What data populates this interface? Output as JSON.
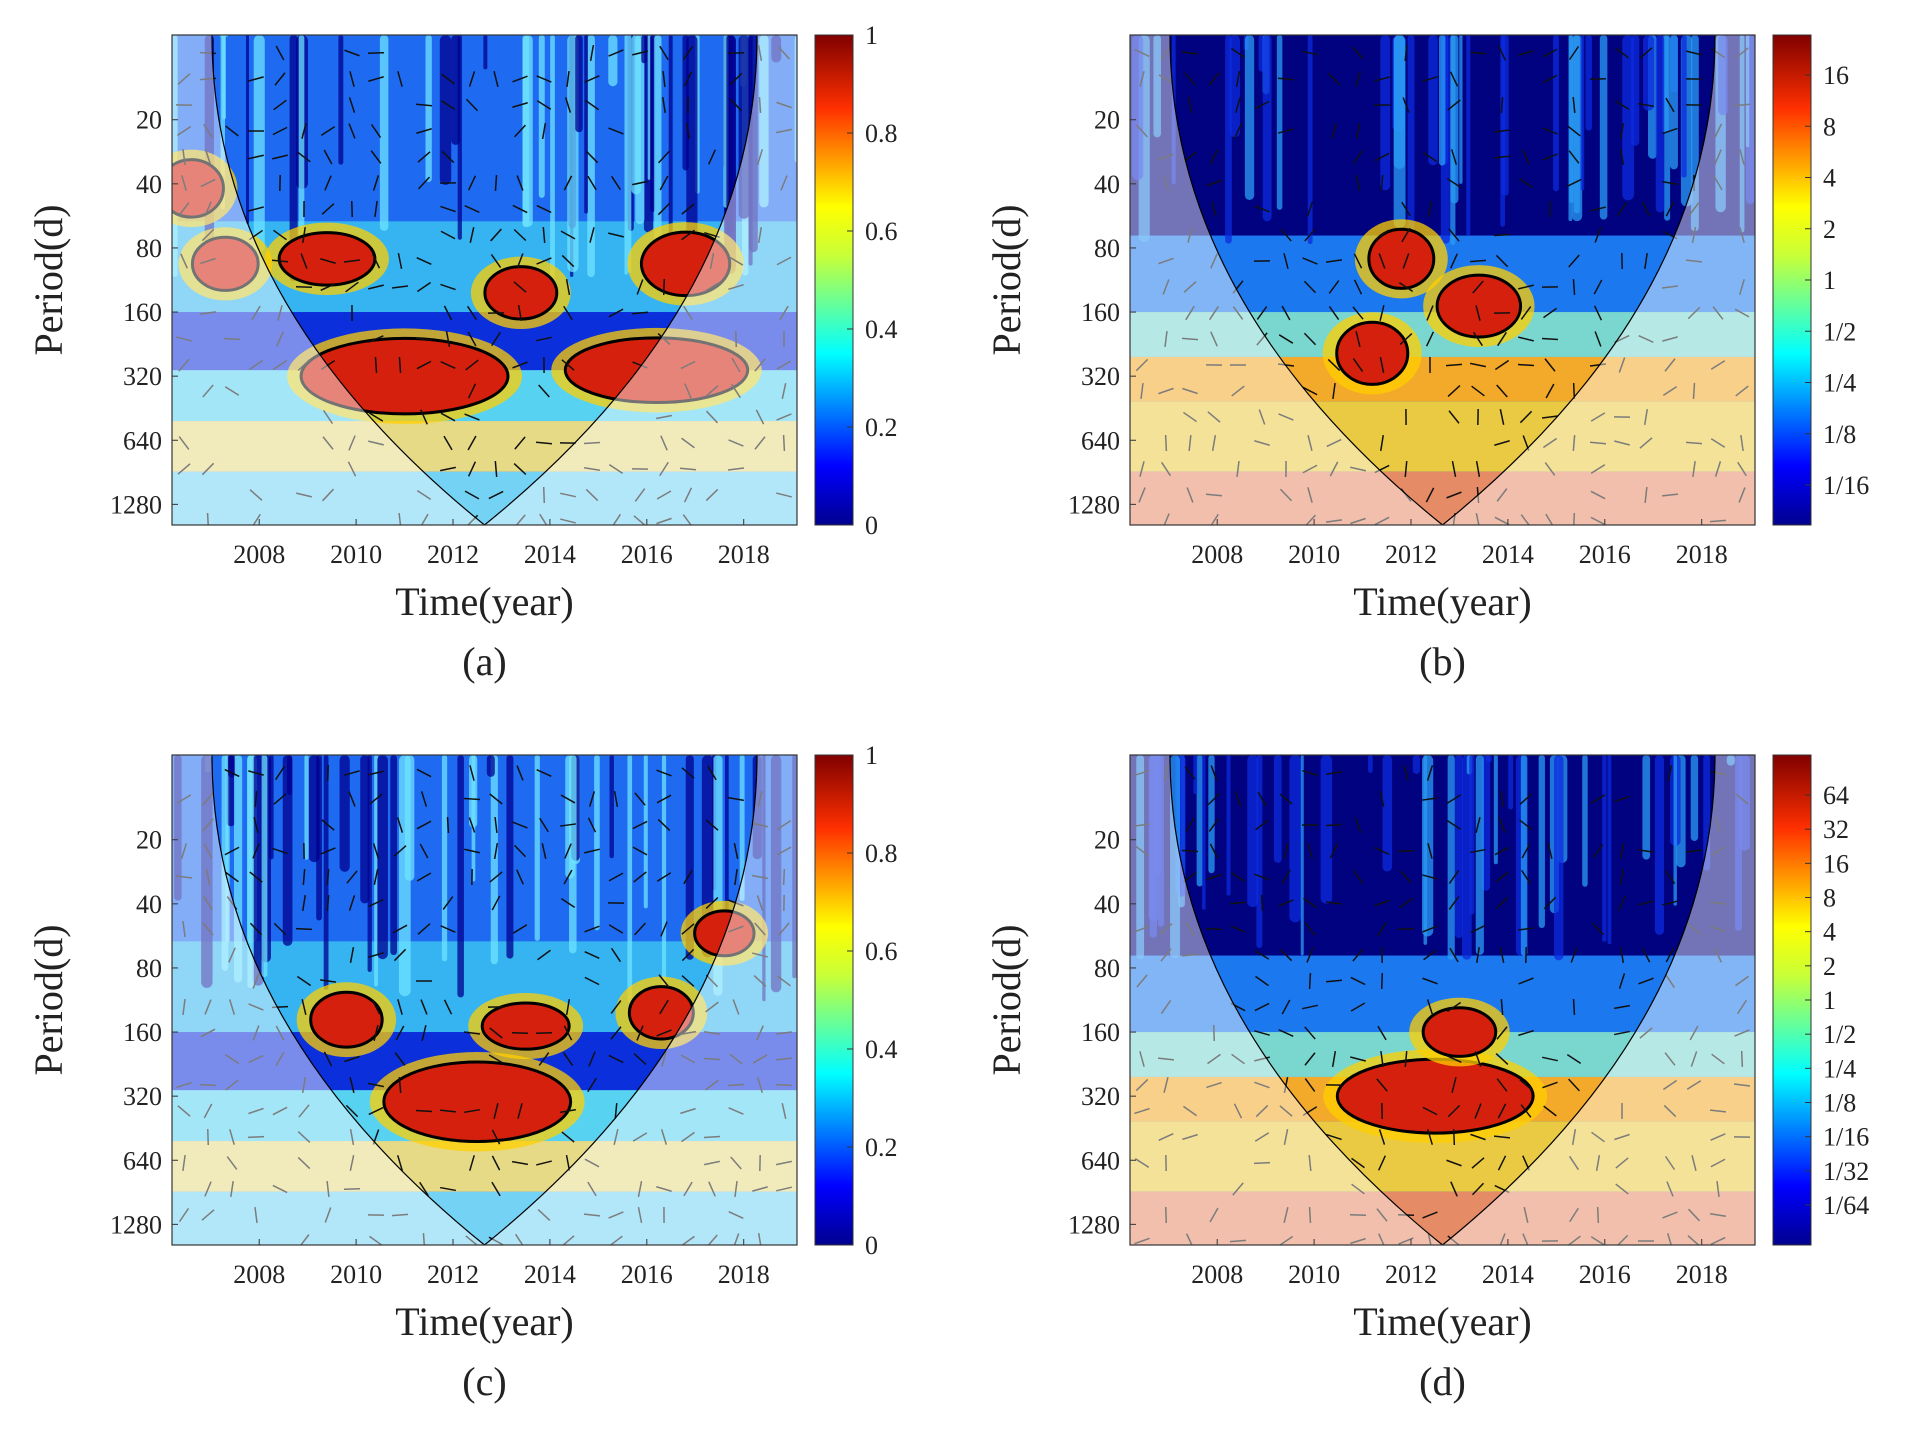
{
  "figure": {
    "panels": [
      {
        "id": "a",
        "caption": "(a)",
        "colorbar_type": "linear"
      },
      {
        "id": "b",
        "caption": "(b)",
        "colorbar_type": "power"
      },
      {
        "id": "c",
        "caption": "(c)",
        "colorbar_type": "linear"
      },
      {
        "id": "d",
        "caption": "(d)",
        "colorbar_type": "power"
      }
    ]
  },
  "chart_data": [
    {
      "type": "heatmap",
      "panel": "a",
      "caption": "(a)",
      "xlabel": "Time(year)",
      "ylabel": "Period(d)",
      "x_ticks": [
        "2008",
        "2010",
        "2012",
        "2014",
        "2016",
        "2018"
      ],
      "y_ticks": [
        "20",
        "40",
        "80",
        "160",
        "320",
        "640",
        "1280"
      ],
      "y_scale": "log2",
      "xlim": [
        2006.2,
        2019.1
      ],
      "ylim": [
        8,
        1600
      ],
      "colorbar": {
        "ticks": [
          "0",
          "0.2",
          "0.4",
          "0.6",
          "0.8",
          "1"
        ],
        "range": [
          0,
          1
        ]
      },
      "significant_regions": [
        {
          "x_center": 2006.6,
          "period_center": 42,
          "label": "high"
        },
        {
          "x_center": 2007.3,
          "period_center": 95,
          "label": "high"
        },
        {
          "x_center": 2009.4,
          "period_center": 90,
          "label": "high"
        },
        {
          "x_center": 2011.0,
          "period_center": 320,
          "label": "high"
        },
        {
          "x_center": 2013.4,
          "period_center": 130,
          "label": "high"
        },
        {
          "x_center": 2016.2,
          "period_center": 300,
          "label": "high"
        },
        {
          "x_center": 2016.8,
          "period_center": 95,
          "label": "high"
        }
      ]
    },
    {
      "type": "heatmap",
      "panel": "b",
      "caption": "(b)",
      "xlabel": "Time(year)",
      "ylabel": "Period(d)",
      "x_ticks": [
        "2008",
        "2010",
        "2012",
        "2014",
        "2016",
        "2018"
      ],
      "y_ticks": [
        "20",
        "40",
        "80",
        "160",
        "320",
        "640",
        "1280"
      ],
      "y_scale": "log2",
      "xlim": [
        2006.2,
        2019.1
      ],
      "ylim": [
        8,
        1600
      ],
      "colorbar": {
        "ticks": [
          "16",
          "8",
          "4",
          "2",
          "1",
          "1/2",
          "1/4",
          "1/8",
          "1/16"
        ]
      },
      "significant_regions": [
        {
          "x_center": 2011.2,
          "period_center": 250,
          "label": "high power"
        },
        {
          "x_center": 2013.4,
          "period_center": 150,
          "label": "high power"
        },
        {
          "x_center": 2011.8,
          "period_center": 90,
          "label": "high power"
        }
      ]
    },
    {
      "type": "heatmap",
      "panel": "c",
      "caption": "(c)",
      "xlabel": "Time(year)",
      "ylabel": "Period(d)",
      "x_ticks": [
        "2008",
        "2010",
        "2012",
        "2014",
        "2016",
        "2018"
      ],
      "y_ticks": [
        "20",
        "40",
        "80",
        "160",
        "320",
        "640",
        "1280"
      ],
      "y_scale": "log2",
      "xlim": [
        2006.2,
        2019.1
      ],
      "ylim": [
        8,
        1600
      ],
      "colorbar": {
        "ticks": [
          "0",
          "0.2",
          "0.4",
          "0.6",
          "0.8",
          "1"
        ],
        "range": [
          0,
          1
        ]
      },
      "significant_regions": [
        {
          "x_center": 2012.5,
          "period_center": 340,
          "label": "high"
        },
        {
          "x_center": 2009.8,
          "period_center": 140,
          "label": "high"
        },
        {
          "x_center": 2013.5,
          "period_center": 150,
          "label": "high"
        },
        {
          "x_center": 2016.3,
          "period_center": 130,
          "label": "high"
        },
        {
          "x_center": 2017.6,
          "period_center": 55,
          "label": "high"
        }
      ]
    },
    {
      "type": "heatmap",
      "panel": "d",
      "caption": "(d)",
      "xlabel": "Time(year)",
      "ylabel": "Period(d)",
      "x_ticks": [
        "2008",
        "2010",
        "2012",
        "2014",
        "2016",
        "2018"
      ],
      "y_ticks": [
        "20",
        "40",
        "80",
        "160",
        "320",
        "640",
        "1280"
      ],
      "y_scale": "log2",
      "xlim": [
        2006.2,
        2019.1
      ],
      "ylim": [
        8,
        1600
      ],
      "colorbar": {
        "ticks": [
          "64",
          "32",
          "16",
          "8",
          "4",
          "2",
          "1",
          "1/2",
          "1/4",
          "1/8",
          "1/16",
          "1/32",
          "1/64"
        ]
      },
      "significant_regions": [
        {
          "x_center": 2012.5,
          "period_center": 320,
          "label": "high power"
        },
        {
          "x_center": 2013.0,
          "period_center": 160,
          "label": "high power"
        }
      ]
    }
  ]
}
